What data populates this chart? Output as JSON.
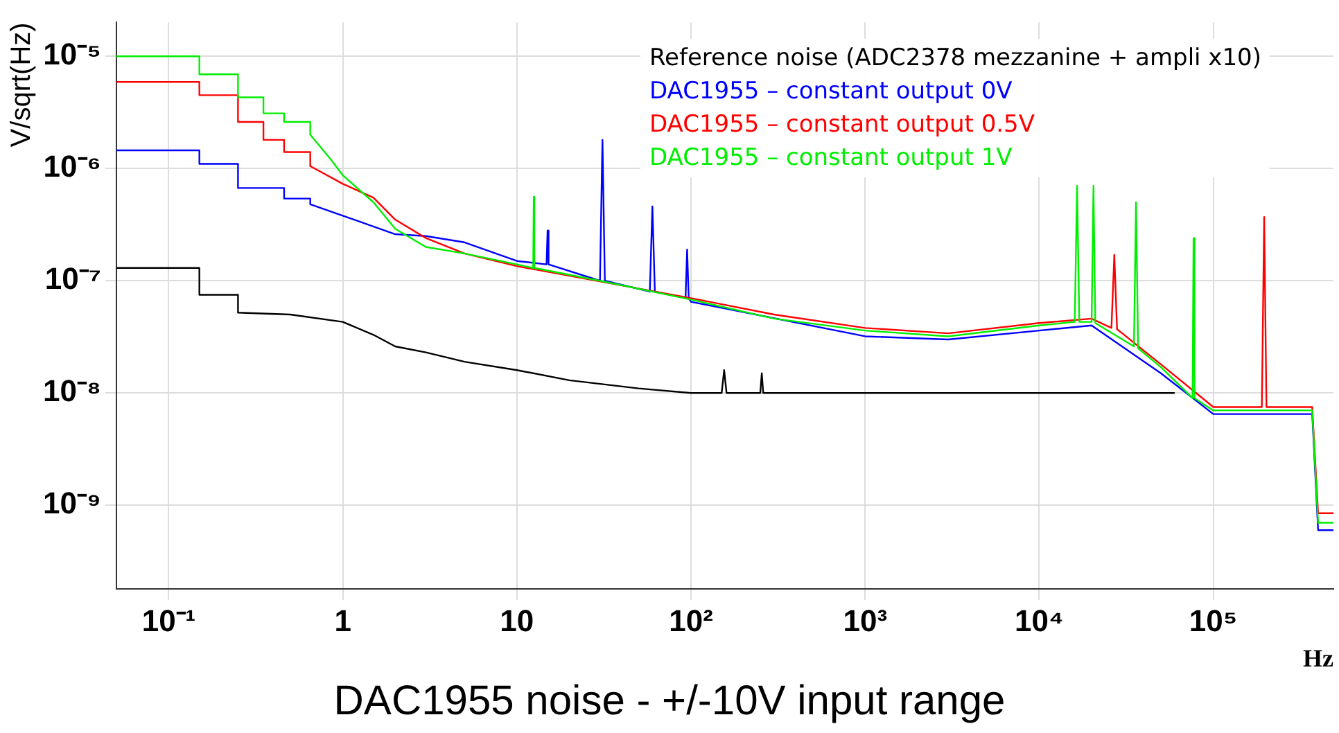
{
  "chart_data": {
    "type": "line",
    "title": "DAC1955 noise - +/-10V input range",
    "xlabel": "Hz",
    "ylabel": "V/sqrt(Hz)",
    "log": "xy",
    "grid": true,
    "legend": "top right",
    "marker": "none",
    "xlim": [
      0.05,
      490000
    ],
    "ylim": [
      1.8e-10,
      2e-05
    ],
    "xticks": [
      {
        "value": 0.1,
        "label": "10⁻¹"
      },
      1,
      10,
      {
        "value": 100,
        "label": "10²"
      },
      {
        "value": 1000,
        "label": "10³"
      },
      {
        "value": 10000,
        "label": "10⁴"
      },
      {
        "value": 100000,
        "label": "10⁵"
      }
    ],
    "yticks": [
      {
        "value": 1e-09,
        "label": "10⁻⁹"
      },
      {
        "value": 1e-08,
        "label": "10⁻⁸"
      },
      {
        "value": 1e-07,
        "label": "10⁻⁷"
      },
      {
        "value": 1e-06,
        "label": "10⁻⁶"
      },
      {
        "value": 1e-05,
        "label": "10⁻⁵"
      }
    ],
    "series": [
      {
        "name": "Reference noise (ADC2378 mezzanine + ampli x10)",
        "color": "#000000",
        "x": [
          0.05,
          0.15,
          0.15,
          0.25,
          0.25,
          0.5,
          1,
          1.5,
          2,
          3,
          5,
          10,
          20,
          50,
          100,
          150,
          155,
          160,
          250,
          255,
          260,
          1000,
          10000,
          60000
        ],
        "values": [
          1.3e-07,
          1.3e-07,
          7.5e-08,
          7.5e-08,
          5.2e-08,
          5e-08,
          4.3e-08,
          3.3e-08,
          2.6e-08,
          2.3e-08,
          1.9e-08,
          1.6e-08,
          1.3e-08,
          1.1e-08,
          1e-08,
          1e-08,
          1.6e-08,
          1e-08,
          1e-08,
          1.5e-08,
          1e-08,
          1e-08,
          1e-08,
          1e-08
        ]
      },
      {
        "name": "DAC1955 – constant output 0V",
        "color": "#0000ff",
        "x": [
          0.05,
          0.15,
          0.15,
          0.25,
          0.25,
          0.46,
          0.46,
          0.65,
          0.65,
          1,
          2,
          3,
          5,
          10,
          14.8,
          15,
          15.2,
          30,
          31,
          32,
          58,
          60,
          62,
          93,
          95,
          97,
          100,
          1000,
          3000,
          10000,
          20000,
          50000,
          100000,
          370000,
          400000,
          490000
        ],
        "values": [
          1.45e-06,
          1.45e-06,
          1.1e-06,
          1.1e-06,
          6.7e-07,
          6.7e-07,
          5.4e-07,
          5.4e-07,
          4.8e-07,
          3.8e-07,
          2.6e-07,
          2.5e-07,
          2.2e-07,
          1.5e-07,
          1.4e-07,
          2.8e-07,
          1.4e-07,
          1e-07,
          1.8e-06,
          1e-07,
          8e-08,
          4.6e-07,
          8e-08,
          7e-08,
          1.9e-07,
          7e-08,
          6.5e-08,
          3.2e-08,
          3e-08,
          3.6e-08,
          4e-08,
          1.5e-08,
          6.5e-09,
          6.5e-09,
          6e-10,
          6e-10
        ]
      },
      {
        "name": "DAC1955 – constant output 0.5V",
        "color": "#ff0000",
        "x": [
          0.05,
          0.15,
          0.15,
          0.25,
          0.25,
          0.35,
          0.35,
          0.46,
          0.46,
          0.65,
          0.65,
          1,
          1.5,
          2,
          3,
          5,
          10,
          100,
          300,
          1000,
          3000,
          10000,
          20000,
          26000,
          27000,
          28000,
          30000,
          50000,
          100000,
          190000,
          196000,
          202000,
          370000,
          400000,
          490000
        ],
        "values": [
          5.9e-06,
          5.9e-06,
          4.5e-06,
          4.5e-06,
          2.6e-06,
          2.6e-06,
          1.8e-06,
          1.8e-06,
          1.4e-06,
          1.4e-06,
          1.05e-06,
          7.3e-07,
          5.5e-07,
          3.5e-07,
          2.4e-07,
          1.75e-07,
          1.35e-07,
          7e-08,
          5e-08,
          3.8e-08,
          3.4e-08,
          4.2e-08,
          4.6e-08,
          3.8e-08,
          1.7e-07,
          3.7e-08,
          3.4e-08,
          1.8e-08,
          7.5e-09,
          7.5e-09,
          3.7e-07,
          7.5e-09,
          7.5e-09,
          8.5e-10,
          8.5e-10
        ]
      },
      {
        "name": "DAC1955 – constant output 1V",
        "color": "#00ee00",
        "x": [
          0.05,
          0.15,
          0.15,
          0.25,
          0.25,
          0.35,
          0.35,
          0.46,
          0.46,
          0.65,
          0.65,
          0.83,
          1,
          1.5,
          2,
          3,
          5,
          10,
          12.4,
          12.5,
          12.6,
          30,
          100,
          300,
          1000,
          3000,
          10000,
          16000,
          16500,
          17000,
          20000,
          20500,
          21000,
          35000,
          36000,
          37000,
          50000,
          76000,
          77000,
          78000,
          100000,
          370000,
          400000,
          490000
        ],
        "values": [
          1e-05,
          1e-05,
          6.9e-06,
          6.9e-06,
          4.3e-06,
          4.3e-06,
          3.1e-06,
          3.1e-06,
          2.6e-06,
          2.6e-06,
          2e-06,
          1.27e-06,
          8.7e-07,
          5e-07,
          2.9e-07,
          2e-07,
          1.75e-07,
          1.4e-07,
          1.3e-07,
          5.6e-07,
          1.3e-07,
          1e-07,
          6.8e-08,
          4.6e-08,
          3.6e-08,
          3.2e-08,
          4e-08,
          4.3e-08,
          7e-07,
          4.3e-08,
          4.3e-08,
          7e-07,
          4.2e-08,
          2.6e-08,
          5e-07,
          2.5e-08,
          1.7e-08,
          9e-09,
          2.4e-07,
          9e-09,
          7e-09,
          7e-09,
          7e-10,
          7e-10
        ]
      }
    ]
  }
}
